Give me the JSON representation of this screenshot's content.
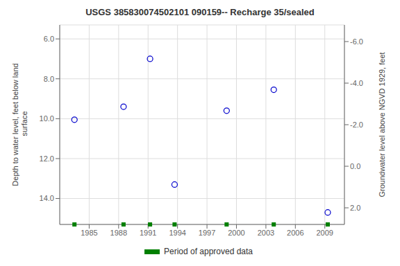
{
  "chart_data": {
    "type": "scatter",
    "title": "USGS 385830074502101 090159-- Recharge 35/sealed",
    "y_label": "Depth to water level, feet below land\n surface",
    "y2_label": "Groundwater level above NGVD 1929, feet",
    "x": [
      1983.5,
      1988.5,
      1991.2,
      1993.7,
      1999.0,
      2003.8,
      2009.3
    ],
    "series": [
      {
        "color": "#0000cc",
        "marker": "circle",
        "values": [
          10.05,
          9.4,
          7.0,
          13.3,
          9.6,
          8.55,
          14.7
        ]
      },
      {
        "name": "Period of approved data",
        "color": "#008000",
        "marker": "square",
        "x": [
          1983.5,
          1988.5,
          1991.2,
          1993.7,
          1999.0,
          2003.8,
          2009.3
        ]
      }
    ],
    "xlim": [
      1982,
      2011
    ],
    "xticks": [
      1985,
      1988,
      1991,
      1994,
      1997,
      2000,
      2003,
      2006,
      2009
    ],
    "ylim": [
      15.3,
      5.3
    ],
    "yticks": [
      {
        "value": 6.0,
        "label": "6.0"
      },
      {
        "value": 8.0,
        "label": "8.0"
      },
      {
        "value": 10.0,
        "label": "10.0"
      },
      {
        "value": 12.0,
        "label": "12.0"
      },
      {
        "value": 14.0,
        "label": "14.0"
      }
    ],
    "y2lim": [
      2.8,
      -6.8
    ],
    "y2ticks": [
      {
        "value": 2.0,
        "label": "2.0"
      },
      {
        "value": 0.0,
        "label": "0.0"
      },
      {
        "value": -2.0,
        "label": "-2.0"
      },
      {
        "value": -4.0,
        "label": "-4.0"
      },
      {
        "value": -6.0,
        "label": "-6.0"
      }
    ],
    "grid": true
  }
}
